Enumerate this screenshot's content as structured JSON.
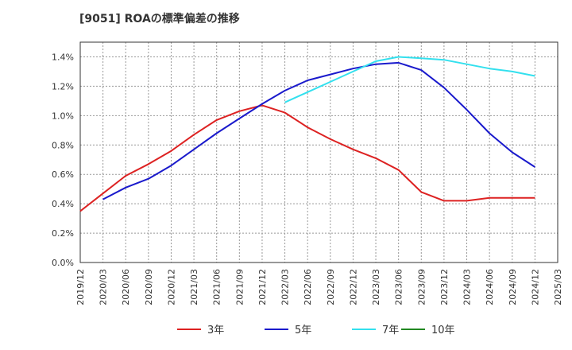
{
  "chart_data": {
    "type": "line",
    "title": "[9051]  ROAの標準偏差の推移",
    "xlabel": "",
    "ylabel": "",
    "ylim": [
      0,
      1.5
    ],
    "yticks": [
      "0.0%",
      "0.2%",
      "0.4%",
      "0.6%",
      "0.8%",
      "1.0%",
      "1.2%",
      "1.4%"
    ],
    "ytick_values": [
      0,
      0.2,
      0.4,
      0.6,
      0.8,
      1.0,
      1.2,
      1.4
    ],
    "categories": [
      "2019/12",
      "2020/03",
      "2020/06",
      "2020/09",
      "2020/12",
      "2021/03",
      "2021/06",
      "2021/09",
      "2021/12",
      "2022/03",
      "2022/06",
      "2022/09",
      "2022/12",
      "2023/03",
      "2023/06",
      "2023/09",
      "2023/12",
      "2024/03",
      "2024/06",
      "2024/09",
      "2024/12",
      "2025/03"
    ],
    "grid": true,
    "legend_position": "bottom",
    "series": [
      {
        "name": "3年",
        "color": "#dd2222",
        "values": [
          0.35,
          0.47,
          0.59,
          0.67,
          0.76,
          0.87,
          0.97,
          1.03,
          1.07,
          1.02,
          0.92,
          0.84,
          0.77,
          0.71,
          0.63,
          0.48,
          0.42,
          0.42,
          0.44,
          0.44,
          0.44,
          null
        ]
      },
      {
        "name": "5年",
        "color": "#1a1acc",
        "values": [
          null,
          0.43,
          0.51,
          0.57,
          0.66,
          0.77,
          0.88,
          0.98,
          1.08,
          1.17,
          1.24,
          1.28,
          1.32,
          1.35,
          1.36,
          1.31,
          1.19,
          1.04,
          0.88,
          0.75,
          0.65,
          null
        ]
      },
      {
        "name": "7年",
        "color": "#33e0ee",
        "values": [
          null,
          null,
          null,
          null,
          null,
          null,
          null,
          null,
          null,
          1.09,
          1.16,
          1.23,
          1.3,
          1.37,
          1.4,
          1.39,
          1.38,
          1.35,
          1.32,
          1.3,
          1.27,
          null
        ]
      },
      {
        "name": "10年",
        "color": "#228822",
        "values": [
          null,
          null,
          null,
          null,
          null,
          null,
          null,
          null,
          null,
          null,
          null,
          null,
          null,
          null,
          null,
          null,
          null,
          null,
          null,
          null,
          null,
          null
        ]
      }
    ]
  }
}
